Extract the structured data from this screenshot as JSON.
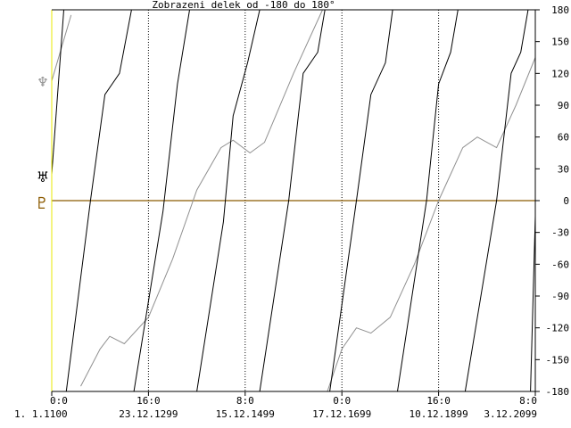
{
  "chart_data": {
    "type": "line",
    "title": "Zobrazeni delek od -180 do 180°",
    "ylim": [
      -180,
      180
    ],
    "y_ticks": [
      180,
      150,
      120,
      90,
      60,
      30,
      0,
      -30,
      -60,
      -90,
      -120,
      -150,
      -180
    ],
    "x_ticks": [
      {
        "time": "0:0",
        "date": "1. 1.1100"
      },
      {
        "time": "16:0",
        "date": "23.12.1299"
      },
      {
        "time": "8:0",
        "date": "15.12.1499"
      },
      {
        "time": "0:0",
        "date": "17.12.1699"
      },
      {
        "time": "16:0",
        "date": "10.12.1899"
      },
      {
        "time": "8:0",
        "date": "3.12.2099"
      }
    ],
    "vertical_gridlines": "dotted at each century tick",
    "reference_line": {
      "value": 0,
      "color": "#8B5A00",
      "label_glyph": "♇"
    },
    "series": [
      {
        "glyph": "♆",
        "color": "#909090",
        "points": [
          [
            1100,
            113
          ],
          [
            1140,
            175
          ],
          [
            1160,
            -175
          ],
          [
            1200,
            -140
          ],
          [
            1220,
            -128
          ],
          [
            1250,
            -135
          ],
          [
            1300,
            -110
          ],
          [
            1350,
            -55
          ],
          [
            1400,
            10
          ],
          [
            1450,
            50
          ],
          [
            1475,
            57
          ],
          [
            1510,
            45
          ],
          [
            1540,
            55
          ],
          [
            1600,
            120
          ],
          [
            1660,
            180
          ],
          [
            1670,
            -180
          ],
          [
            1700,
            -140
          ],
          [
            1730,
            -120
          ],
          [
            1760,
            -125
          ],
          [
            1800,
            -110
          ],
          [
            1850,
            -60
          ],
          [
            1900,
            0
          ],
          [
            1950,
            50
          ],
          [
            1980,
            60
          ],
          [
            2020,
            50
          ],
          [
            2060,
            90
          ],
          [
            2100,
            135
          ]
        ]
      },
      {
        "glyph": "♅",
        "color": "#000000",
        "points": [
          [
            1100,
            25
          ],
          [
            1125,
            180
          ],
          [
            1130,
            -180
          ],
          [
            1180,
            0
          ],
          [
            1210,
            100
          ],
          [
            1240,
            120
          ],
          [
            1265,
            180
          ],
          [
            1270,
            -180
          ],
          [
            1330,
            -10
          ],
          [
            1360,
            110
          ],
          [
            1385,
            180
          ],
          [
            1400,
            -180
          ],
          [
            1455,
            -20
          ],
          [
            1475,
            80
          ],
          [
            1505,
            130
          ],
          [
            1530,
            180
          ],
          [
            1530,
            -180
          ],
          [
            1590,
            0
          ],
          [
            1620,
            120
          ],
          [
            1650,
            140
          ],
          [
            1665,
            180
          ],
          [
            1675,
            -180
          ],
          [
            1730,
            0
          ],
          [
            1760,
            100
          ],
          [
            1790,
            130
          ],
          [
            1805,
            180
          ],
          [
            1815,
            -180
          ],
          [
            1875,
            0
          ],
          [
            1900,
            110
          ],
          [
            1925,
            140
          ],
          [
            1940,
            180
          ],
          [
            1955,
            -180
          ],
          [
            2020,
            0
          ],
          [
            2050,
            120
          ],
          [
            2070,
            140
          ],
          [
            2085,
            180
          ],
          [
            2090,
            -180
          ],
          [
            2100,
            -15
          ]
        ]
      }
    ]
  }
}
